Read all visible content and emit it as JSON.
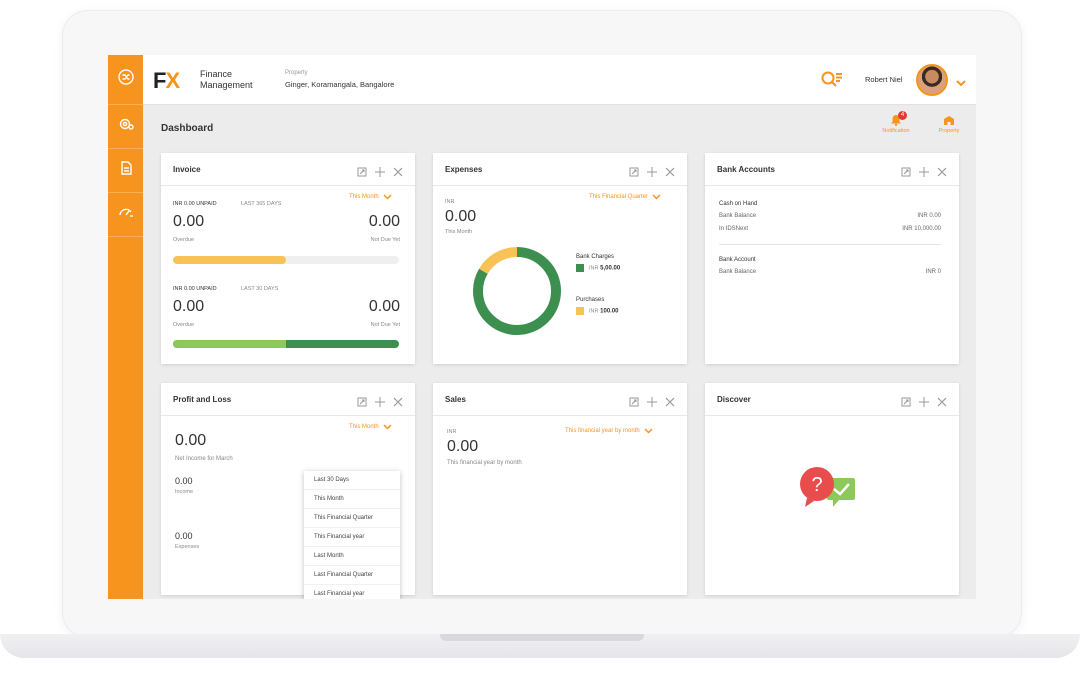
{
  "colors": {
    "accent": "#f7941d",
    "green": "#3c8f4e",
    "yellow": "#f9c257",
    "light_green": "#8cc85a",
    "red": "#e53935"
  },
  "header": {
    "logo_left": "F",
    "logo_right": "X",
    "app_line1": "Finance",
    "app_line2": "Management",
    "property_label": "Property",
    "property_value": "Ginger, Koramangala, Bangalore",
    "user_name": "Robert Niel"
  },
  "page": {
    "title": "Dashboard",
    "notification_label": "Notification",
    "notification_count": "4",
    "property_label": "Property"
  },
  "rail": {
    "icons": [
      "shuffle-icon",
      "settings-icon",
      "document-icon",
      "gauge-icon"
    ]
  },
  "invoice": {
    "title": "Invoice",
    "filter": "This Month",
    "sections": [
      {
        "label": "INR 0.00 UNPAID",
        "range": "LAST 365 DAYS",
        "overdue_value": "0.00",
        "overdue_label": "Overdue",
        "notdue_value": "0.00",
        "notdue_label": "Not Due Yet",
        "overdue_fraction": 0.5
      },
      {
        "label": "INR 0.00 UNPAID",
        "range": "LAST 30 DAYS",
        "overdue_value": "0.00",
        "overdue_label": "Overdue",
        "notdue_value": "0.00",
        "notdue_label": "Not Due Yet",
        "overdue_fraction": 0.5
      }
    ]
  },
  "expenses": {
    "title": "Expenses",
    "filter": "This Financial Quarter",
    "currency": "INR",
    "total": "0.00",
    "period": "This Month",
    "legend": [
      {
        "name": "Bank Charges",
        "currency": "INR",
        "amount": "5,00.00"
      },
      {
        "name": "Purchases",
        "currency": "INR",
        "amount": "100.00"
      }
    ]
  },
  "chart_data": {
    "type": "pie",
    "categories": [
      "Bank Charges",
      "Purchases"
    ],
    "values": [
      500,
      100
    ],
    "title": ""
  },
  "bank": {
    "title": "Bank Accounts",
    "group1_title": "Cash on Hand",
    "group1_rows": [
      {
        "label": "Bank Balance",
        "value": "INR 0.00"
      },
      {
        "label": "In IDSNext",
        "value": "INR 10,000.00"
      }
    ],
    "group2_title": "Bank Account",
    "group2_rows": [
      {
        "label": "Bank Balance",
        "value": "INR 0"
      }
    ]
  },
  "pl": {
    "title": "Profit and Loss",
    "filter": "This Month",
    "net_value": "0.00",
    "net_label": "Net Income for March",
    "income_value": "0.00",
    "income_label": "Income",
    "expenses_value": "0.00",
    "expenses_label": "Expenses",
    "dropdown": [
      "Last 30 Days",
      "This Month",
      "This Financial Quarter",
      "This Financial year",
      "Last Month",
      "Last Financial Quarter",
      "Last Financial year"
    ]
  },
  "sales": {
    "title": "Sales",
    "filter": "This financial year by month",
    "currency": "INR",
    "value": "0.00",
    "period": "This financial year by month"
  },
  "discover": {
    "title": "Discover"
  }
}
